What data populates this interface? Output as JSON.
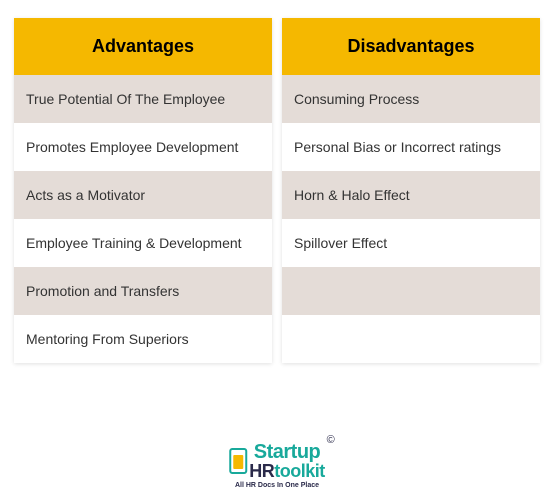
{
  "colors": {
    "header_bg": "#f5b800",
    "row_even": "#e4dcd7",
    "row_odd": "#ffffff",
    "text": "#333333",
    "logo_teal": "#18a99b",
    "logo_dark": "#2a2a4a",
    "logo_orange": "#f5b800"
  },
  "table": {
    "columns": [
      {
        "header": "Advantages",
        "rows": [
          "True Potential Of The Employee",
          "Promotes Employee Development",
          "Acts as a Motivator",
          "Employee Training & Development",
          "Promotion and Transfers",
          "Mentoring From Superiors"
        ]
      },
      {
        "header": "Disadvantages",
        "rows": [
          "Consuming Process",
          "Personal Bias or Incorrect ratings",
          "Horn & Halo Effect",
          "Spillover Effect",
          "",
          ""
        ]
      }
    ]
  },
  "logo": {
    "text_top": "Startup",
    "text_bottom": "HRtoolkit",
    "copyright": "©",
    "tagline": "All HR Docs In One Place"
  }
}
